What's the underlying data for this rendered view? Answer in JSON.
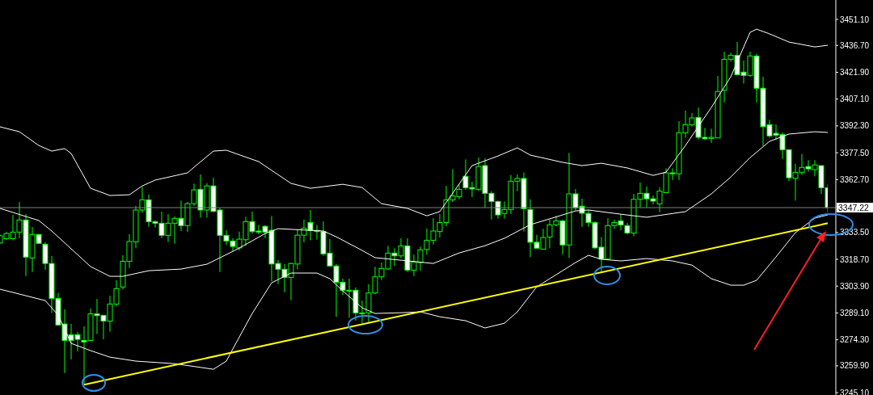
{
  "chart_data": {
    "type": "candlestick",
    "color": "#00ff00",
    "categories": [
      null,
      null,
      null,
      null,
      null,
      null,
      null,
      null,
      null,
      null,
      null,
      null,
      null,
      null,
      null,
      null,
      null,
      null,
      null,
      null,
      null,
      null,
      null,
      null,
      null,
      null,
      null,
      null,
      null,
      null,
      null,
      null,
      null,
      null,
      null,
      null,
      null,
      null,
      null,
      null,
      null,
      null,
      null,
      null,
      null,
      null,
      null,
      null,
      null,
      null,
      null,
      null,
      null,
      null,
      null,
      null,
      null,
      null,
      null,
      null,
      null,
      null,
      null,
      null,
      null,
      null,
      null,
      null,
      null,
      null,
      null,
      null,
      null,
      null,
      null,
      null,
      null,
      null,
      null,
      null,
      null,
      null,
      null,
      null,
      null,
      null,
      null,
      null,
      null,
      null,
      null,
      null,
      null,
      null,
      null,
      null,
      null,
      null,
      null,
      null,
      null,
      null,
      null,
      null,
      null,
      null,
      null,
      null,
      null,
      null,
      null,
      null,
      null,
      null,
      null,
      null,
      null,
      null,
      null,
      null,
      null,
      null,
      null,
      null,
      null,
      null,
      null,
      null,
      null
    ],
    "ohlc": [
      [
        3327.7,
        3332.5,
        3327.3,
        3331.7
      ],
      [
        3330.1,
        3333.8,
        3329.4,
        3332.9
      ],
      [
        3330.1,
        3343.2,
        3329.2,
        3333.7
      ],
      [
        3333.7,
        3350.3,
        3330.3,
        3340.4
      ],
      [
        3340.4,
        3343.6,
        3309.4,
        3319.9
      ],
      [
        3319.4,
        3336.5,
        3311.7,
        3332.4
      ],
      [
        3332.4,
        3332.5,
        3327.1,
        3327.5
      ],
      [
        3327.0,
        3328.1,
        3312.9,
        3316.4
      ],
      [
        3316.4,
        3320.6,
        3289.1,
        3297.1
      ],
      [
        3297.1,
        3300.1,
        3282.0,
        3282.4
      ],
      [
        3283.0,
        3291.1,
        3255.9,
        3273.9
      ],
      [
        3277.1,
        3283.1,
        3263.4,
        3273.9
      ],
      [
        3277.1,
        3278.7,
        3267.8,
        3274.5
      ],
      [
        3273.9,
        3281.7,
        3249.5,
        3273.1
      ],
      [
        3273.9,
        3291.6,
        3273.9,
        3288.6
      ],
      [
        3288.6,
        3296.8,
        3277.5,
        3287.6
      ],
      [
        3287.8,
        3287.9,
        3274.5,
        3284.6
      ],
      [
        3284.6,
        3298.6,
        3278.7,
        3294.0
      ],
      [
        3294.0,
        3307.2,
        3292.7,
        3302.5
      ],
      [
        3303.4,
        3320.9,
        3302.0,
        3317.6
      ],
      [
        3317.6,
        3332.5,
        3313.9,
        3328.5
      ],
      [
        3328.3,
        3348.1,
        3324.8,
        3345.9
      ],
      [
        3345.9,
        3358.5,
        3344.4,
        3351.5
      ],
      [
        3351.5,
        3354.5,
        3336.6,
        3339.5
      ],
      [
        3339.5,
        3340.2,
        3336.2,
        3338.6
      ],
      [
        3338.6,
        3345.0,
        3330.4,
        3331.9
      ],
      [
        3331.9,
        3343.6,
        3328.3,
        3338.6
      ],
      [
        3338.6,
        3342.4,
        3327.3,
        3341.3
      ],
      [
        3341.3,
        3351.1,
        3334.3,
        3337.3
      ],
      [
        3337.3,
        3350.3,
        3333.7,
        3349.4
      ],
      [
        3349.4,
        3360.4,
        3348.1,
        3357.0
      ],
      [
        3357.3,
        3365.5,
        3341.7,
        3345.9
      ],
      [
        3345.9,
        3360.7,
        3341.7,
        3359.2
      ],
      [
        3359.2,
        3363.7,
        3344.7,
        3345.1
      ],
      [
        3345.9,
        3347.1,
        3311.7,
        3331.9
      ],
      [
        3331.9,
        3334.7,
        3326.6,
        3328.8
      ],
      [
        3328.8,
        3330.3,
        3323.3,
        3325.8
      ],
      [
        3325.0,
        3334.0,
        3323.6,
        3329.8
      ],
      [
        3329.5,
        3342.2,
        3326.2,
        3339.5
      ],
      [
        3339.5,
        3345.1,
        3332.8,
        3334.0
      ],
      [
        3334.3,
        3337.7,
        3332.5,
        3333.7
      ],
      [
        3336.9,
        3337.5,
        3330.3,
        3333.7
      ],
      [
        3334.7,
        3342.6,
        3306.5,
        3316.1
      ],
      [
        3316.4,
        3318.4,
        3305.0,
        3313.2
      ],
      [
        3313.2,
        3316.1,
        3300.5,
        3308.7
      ],
      [
        3308.7,
        3316.9,
        3296.1,
        3316.4
      ],
      [
        3316.1,
        3335.2,
        3313.2,
        3332.0
      ],
      [
        3332.0,
        3340.6,
        3328.1,
        3335.9
      ],
      [
        3339.0,
        3345.9,
        3329.2,
        3334.6
      ],
      [
        3334.6,
        3337.7,
        3329.5,
        3334.0
      ],
      [
        3334.0,
        3339.6,
        3320.6,
        3321.7
      ],
      [
        3322.1,
        3329.8,
        3314.6,
        3315.0
      ],
      [
        3315.0,
        3316.1,
        3286.9,
        3306.0
      ],
      [
        3306.0,
        3308.0,
        3299.0,
        3301.6
      ],
      [
        3301.6,
        3308.0,
        3286.4,
        3301.3
      ],
      [
        3301.6,
        3303.1,
        3284.9,
        3289.1
      ],
      [
        3289.1,
        3295.8,
        3283.4,
        3288.8
      ],
      [
        3289.1,
        3305.0,
        3283.4,
        3300.1
      ],
      [
        3300.1,
        3314.6,
        3299.5,
        3309.0
      ],
      [
        3309.0,
        3316.9,
        3307.2,
        3313.6
      ],
      [
        3313.4,
        3326.1,
        3312.9,
        3322.1
      ],
      [
        3322.1,
        3324.8,
        3315.0,
        3320.6
      ],
      [
        3320.6,
        3330.3,
        3319.4,
        3326.1
      ],
      [
        3326.1,
        3330.3,
        3311.7,
        3312.7
      ],
      [
        3312.7,
        3321.3,
        3309.4,
        3317.2
      ],
      [
        3316.9,
        3325.7,
        3312.4,
        3323.9
      ],
      [
        3324.1,
        3335.7,
        3321.3,
        3329.2
      ],
      [
        3329.2,
        3341.4,
        3326.8,
        3334.3
      ],
      [
        3334.0,
        3343.6,
        3330.7,
        3339.0
      ],
      [
        3339.0,
        3359.2,
        3336.9,
        3351.5
      ],
      [
        3351.5,
        3368.5,
        3350.3,
        3353.6
      ],
      [
        3353.3,
        3360.0,
        3351.8,
        3357.3
      ],
      [
        3364.5,
        3373.8,
        3357.0,
        3358.2
      ],
      [
        3358.3,
        3361.5,
        3353.0,
        3357.5
      ],
      [
        3357.3,
        3374.8,
        3356.3,
        3369.9
      ],
      [
        3370.4,
        3374.4,
        3347.1,
        3355.1
      ],
      [
        3355.1,
        3356.3,
        3340.6,
        3350.6
      ],
      [
        3350.6,
        3351.1,
        3341.1,
        3343.2
      ],
      [
        3344.0,
        3350.6,
        3341.1,
        3346.2
      ],
      [
        3346.2,
        3365.2,
        3343.6,
        3361.8
      ],
      [
        3361.8,
        3365.5,
        3356.3,
        3363.3
      ],
      [
        3363.3,
        3366.7,
        3334.0,
        3346.6
      ],
      [
        3346.2,
        3351.8,
        3319.9,
        3328.1
      ],
      [
        3328.1,
        3332.2,
        3324.8,
        3324.8
      ],
      [
        3324.3,
        3335.5,
        3324.3,
        3330.7
      ],
      [
        3331.0,
        3340.6,
        3324.8,
        3337.7
      ],
      [
        3337.7,
        3342.6,
        3336.9,
        3339.9
      ],
      [
        3339.9,
        3340.6,
        3321.3,
        3326.6
      ],
      [
        3326.6,
        3377.4,
        3319.4,
        3354.8
      ],
      [
        3354.8,
        3357.5,
        3345.6,
        3347.1
      ],
      [
        3348.0,
        3352.1,
        3336.6,
        3344.1
      ],
      [
        3344.0,
        3345.9,
        3336.6,
        3339.0
      ],
      [
        3339.0,
        3339.6,
        3324.3,
        3325.0
      ],
      [
        3325.4,
        3331.0,
        3311.7,
        3318.8
      ],
      [
        3318.8,
        3341.4,
        3318.4,
        3337.3
      ],
      [
        3337.3,
        3340.6,
        3335.5,
        3339.0
      ],
      [
        3339.9,
        3343.6,
        3334.7,
        3337.7
      ],
      [
        3337.3,
        3338.7,
        3332.5,
        3333.2
      ],
      [
        3333.2,
        3354.8,
        3331.3,
        3351.8
      ],
      [
        3351.8,
        3361.0,
        3347.3,
        3355.1
      ],
      [
        3355.1,
        3358.9,
        3347.3,
        3352.1
      ],
      [
        3352.1,
        3354.0,
        3348.9,
        3350.8
      ],
      [
        3349.3,
        3358.5,
        3344.7,
        3356.3
      ],
      [
        3355.5,
        3368.9,
        3355.1,
        3366.4
      ],
      [
        3366.4,
        3368.9,
        3362.5,
        3365.9
      ],
      [
        3365.9,
        3394.9,
        3362.5,
        3388.5
      ],
      [
        3388.5,
        3400.8,
        3385.7,
        3393.0
      ],
      [
        3393.0,
        3399.4,
        3391.9,
        3396.7
      ],
      [
        3397.0,
        3402.4,
        3384.8,
        3386.0
      ],
      [
        3386.0,
        3391.2,
        3384.5,
        3385.2
      ],
      [
        3385.4,
        3390.8,
        3383.0,
        3386.0
      ],
      [
        3385.7,
        3419.9,
        3385.7,
        3411.3
      ],
      [
        3412.0,
        3433.3,
        3405.3,
        3429.1
      ],
      [
        3429.1,
        3432.8,
        3427.9,
        3431.3
      ],
      [
        3431.3,
        3438.7,
        3420.2,
        3420.6
      ],
      [
        3422.0,
        3428.4,
        3415.7,
        3420.2
      ],
      [
        3420.2,
        3433.3,
        3419.4,
        3430.9
      ],
      [
        3430.9,
        3432.1,
        3405.3,
        3413.1
      ],
      [
        3413.1,
        3419.4,
        3381.2,
        3391.9
      ],
      [
        3393.0,
        3395.7,
        3385.7,
        3386.8
      ],
      [
        3388.2,
        3393.1,
        3384.5,
        3387.2
      ],
      [
        3387.5,
        3388.7,
        3374.1,
        3379.2
      ],
      [
        3379.2,
        3379.2,
        3361.9,
        3363.7
      ],
      [
        3363.4,
        3371.4,
        3351.1,
        3366.7
      ],
      [
        3366.7,
        3376.8,
        3365.2,
        3369.4
      ],
      [
        3369.9,
        3373.4,
        3367.0,
        3368.6
      ],
      [
        3368.2,
        3373.4,
        3364.5,
        3370.8
      ],
      [
        3370.4,
        3370.4,
        3354.8,
        3358.2
      ],
      [
        3358.2,
        3360.0,
        3344.4,
        3347.22
      ]
    ],
    "series": [
      {
        "type": "line",
        "color": "#ffffff",
        "values": [
          3391.8,
          null,
          null,
          3389.1,
          null,
          null,
          3381.5,
          null,
          3378.4,
          null,
          3379.8,
          3377.1,
          null,
          null,
          3357.9,
          null,
          null,
          3353.9,
          null,
          null,
          3354.3,
          null,
          3359.2,
          null,
          3362.4,
          null,
          null,
          null,
          null,
          3366.4,
          3369.5,
          null,
          null,
          3378.4,
          null,
          3378.9,
          null,
          null,
          null,
          null,
          3372.6,
          null,
          null,
          null,
          null,
          3360.6,
          null,
          null,
          3357.9,
          null,
          null,
          null,
          null,
          3360.1,
          null,
          null,
          3358.3,
          null,
          null,
          3349.4,
          null,
          null,
          null,
          3346.8,
          null,
          null,
          3342.7,
          null,
          3345.0,
          null,
          null,
          null,
          null,
          3370.4,
          null,
          null,
          null,
          3375.7,
          null,
          null,
          3380.2,
          null,
          3376.2,
          null,
          null,
          null,
          null,
          3372.2,
          null,
          null,
          3370.4,
          null,
          null,
          3371.7,
          null,
          null,
          null,
          3369.1,
          null,
          null,
          null,
          3365.0,
          null,
          3366.8,
          null,
          null,
          3381.5,
          null,
          null,
          null,
          3402.5,
          null,
          null,
          3419.4,
          null,
          null,
          3444.0,
          3445.7,
          null,
          3443.1,
          null,
          null,
          3438.6,
          null,
          null,
          null,
          3435.9,
          null,
          3436.8
        ]
      },
      {
        "type": "line",
        "color": "#ffffff",
        "values": [
          3346.8,
          null,
          null,
          null,
          3342.3,
          null,
          3340.1,
          null,
          3334.3,
          null,
          null,
          3324.5,
          null,
          null,
          3314.7,
          null,
          null,
          3309.3,
          null,
          3309.3,
          null,
          null,
          null,
          3312.4,
          null,
          null,
          null,
          null,
          3313.3,
          null,
          null,
          null,
          3316.0,
          null,
          null,
          3321.3,
          null,
          3324.9,
          null,
          null,
          null,
          3332.9,
          null,
          3335.6,
          null,
          null,
          null,
          null,
          null,
          null,
          3334.3,
          null,
          3331.1,
          null,
          null,
          null,
          3323.6,
          null,
          3319.6,
          null,
          null,
          null,
          3318.2,
          null,
          null,
          null,
          null,
          3316.4,
          null,
          null,
          null,
          3322.2,
          null,
          null,
          null,
          3326.2,
          null,
          null,
          3330.3,
          null,
          null,
          null,
          3337.8,
          null,
          null,
          3341.0,
          null,
          null,
          null,
          3345.4,
          null,
          3345.9,
          null,
          null,
          3344.5,
          null,
          null,
          null,
          3342.7,
          null,
          3341.9,
          null,
          null,
          null,
          null,
          null,
          3345.0,
          null,
          null,
          null,
          3354.8,
          null,
          null,
          3364.1,
          null,
          null,
          3374.8,
          null,
          null,
          3383.8,
          null,
          null,
          3387.8,
          null,
          null,
          null,
          3389.1,
          null,
          3388.7
        ]
      },
      {
        "type": "line",
        "color": "#ffffff",
        "values": [
          3302.2,
          null,
          null,
          3299.5,
          null,
          3297.7,
          null,
          3295.9,
          null,
          3287.9,
          null,
          3272.3,
          null,
          null,
          3268.3,
          null,
          null,
          3264.7,
          null,
          null,
          null,
          3262.5,
          null,
          null,
          null,
          null,
          null,
          3261.1,
          null,
          null,
          null,
          null,
          null,
          3258.0,
          null,
          3262.5,
          3269.2,
          null,
          null,
          3288.8,
          null,
          null,
          3305.7,
          null,
          null,
          3311.1,
          null,
          null,
          null,
          3311.1,
          null,
          3308.0,
          null,
          3301.3,
          null,
          null,
          3291.9,
          null,
          3288.8,
          null,
          null,
          null,
          3289.2,
          null,
          null,
          3289.7,
          null,
          null,
          3287.0,
          null,
          null,
          null,
          3284.8,
          null,
          null,
          3280.8,
          null,
          null,
          3283.4,
          null,
          3289.7,
          null,
          null,
          3303.5,
          null,
          null,
          3310.2,
          null,
          null,
          3316.9,
          null,
          3320.9,
          null,
          3318.7,
          null,
          null,
          3317.8,
          null,
          null,
          null,
          3319.1,
          null,
          null,
          null,
          3317.8,
          null,
          null,
          3315.5,
          null,
          null,
          3308.0,
          null,
          null,
          3304.4,
          null,
          3304.4,
          null,
          3307.1,
          null,
          null,
          3320.0,
          null,
          null,
          3333.4,
          null,
          null,
          3341.4,
          null,
          3343.2
        ]
      },
      {
        "type": "line",
        "color": "#ffff00",
        "values": [
          null,
          null,
          null,
          null,
          null,
          null,
          null,
          null,
          null,
          null,
          null,
          null,
          null,
          3249.5,
          null,
          null,
          null,
          null,
          null,
          null,
          null,
          null,
          null,
          null,
          null,
          null,
          null,
          null,
          null,
          null,
          null,
          null,
          null,
          null,
          null,
          null,
          null,
          null,
          null,
          null,
          null,
          null,
          null,
          null,
          null,
          null,
          null,
          null,
          null,
          null,
          null,
          null,
          null,
          null,
          null,
          null,
          null,
          null,
          null,
          null,
          null,
          null,
          null,
          null,
          null,
          null,
          null,
          null,
          null,
          null,
          null,
          null,
          null,
          null,
          null,
          null,
          null,
          null,
          null,
          null,
          null,
          null,
          null,
          null,
          null,
          null,
          null,
          null,
          null,
          null,
          null,
          null,
          null,
          null,
          null,
          null,
          null,
          null,
          null,
          null,
          null,
          null,
          null,
          null,
          null,
          null,
          null,
          null,
          null,
          null,
          null,
          null,
          null,
          null,
          null,
          null,
          null,
          null,
          null,
          null,
          null,
          null,
          null,
          null,
          null,
          null,
          null,
          null,
          3338.6
        ]
      }
    ],
    "ylim": [
      3243.8,
      3461.8
    ],
    "yticks": [
      {
        "value": 3245.1,
        "label": "3245.10"
      },
      {
        "value": 3259.9,
        "label": "3259.90"
      },
      {
        "value": 3274.3,
        "label": "3274.30"
      },
      {
        "value": 3289.1,
        "label": "3289.10"
      },
      {
        "value": 3303.9,
        "label": "3303.90"
      },
      {
        "value": 3318.7,
        "label": "3318.70"
      },
      {
        "value": 3333.5,
        "label": "3333.50"
      },
      {
        "value": 3362.7,
        "label": "3362.70"
      },
      {
        "value": 3377.5,
        "label": "3377.50"
      },
      {
        "value": 3392.3,
        "label": "3392.30"
      },
      {
        "value": 3407.1,
        "label": "3407.10"
      },
      {
        "value": 3421.9,
        "label": "3421.90"
      },
      {
        "value": 3436.7,
        "label": "3436.70"
      },
      {
        "value": 3451.1,
        "label": "3451.10"
      }
    ],
    "ref_lines": [
      {
        "axis": "y",
        "value": 3347.22,
        "label": "3347.22",
        "color": "#808080"
      }
    ],
    "tick_labels": "y",
    "grid": false,
    "legend": false
  }
}
